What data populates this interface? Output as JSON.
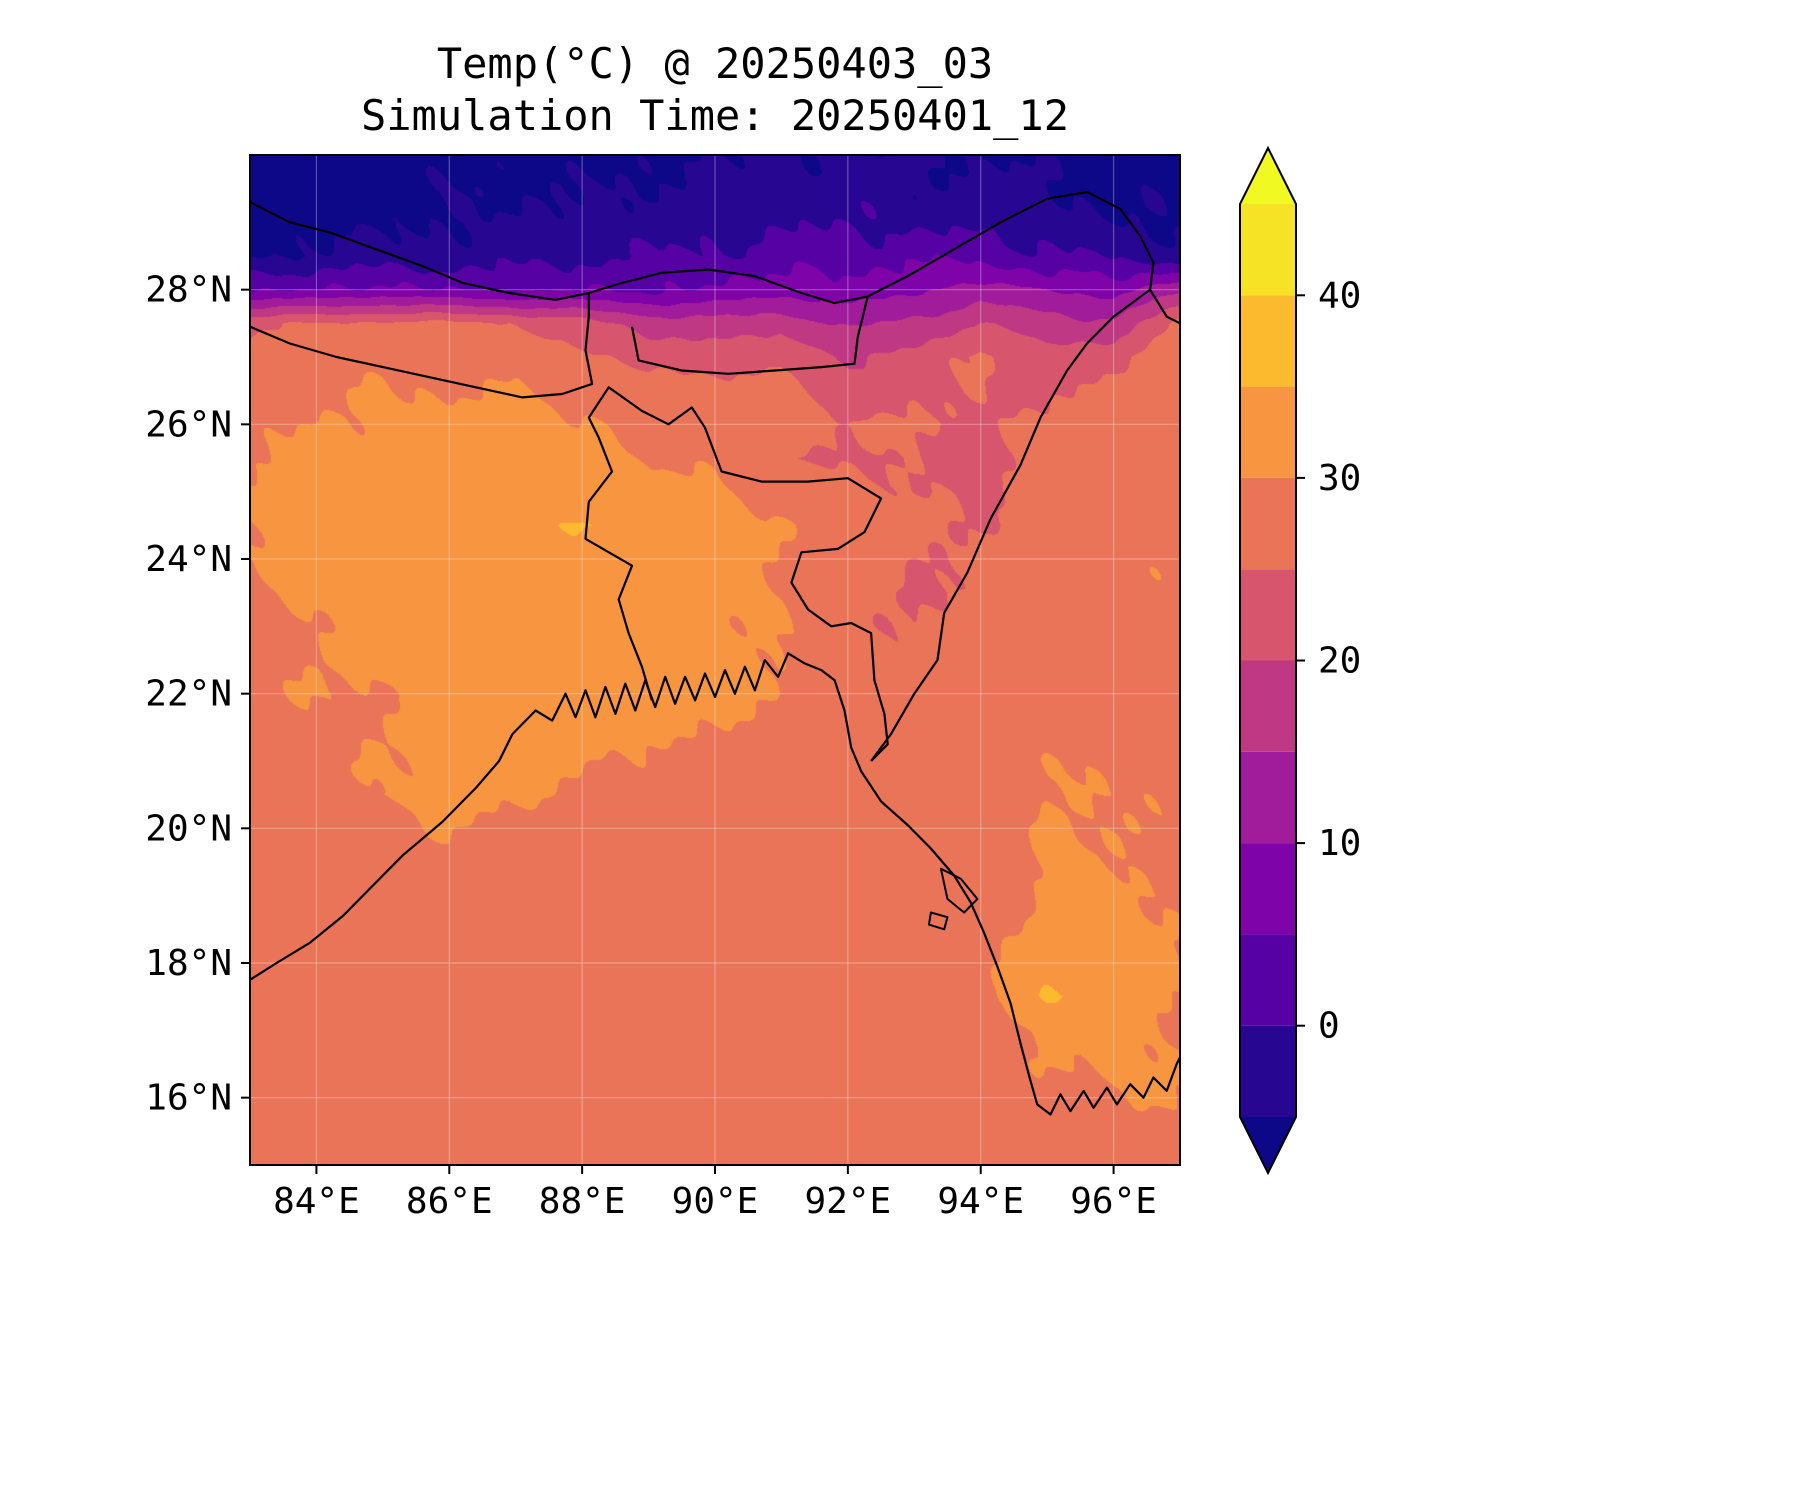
{
  "title": {
    "line1": "Temp(°C) @ 20250403_03",
    "line2": "Simulation Time: 20250401_12"
  },
  "axes": {
    "x_ticks": [
      {
        "label": "84°E",
        "lon": 84
      },
      {
        "label": "86°E",
        "lon": 86
      },
      {
        "label": "88°E",
        "lon": 88
      },
      {
        "label": "90°E",
        "lon": 90
      },
      {
        "label": "92°E",
        "lon": 92
      },
      {
        "label": "94°E",
        "lon": 94
      },
      {
        "label": "96°E",
        "lon": 96
      }
    ],
    "y_ticks": [
      {
        "label": "28°N",
        "lat": 28
      },
      {
        "label": "26°N",
        "lat": 26
      },
      {
        "label": "24°N",
        "lat": 24
      },
      {
        "label": "22°N",
        "lat": 22
      },
      {
        "label": "20°N",
        "lat": 20
      },
      {
        "label": "18°N",
        "lat": 18
      },
      {
        "label": "16°N",
        "lat": 16
      }
    ]
  },
  "chart_data": {
    "type": "heatmap",
    "title": "Temp(°C) @ 20250403_03",
    "subtitle": "Simulation Time: 20250401_12",
    "variable": "Temperature (°C)",
    "lon_range": [
      83,
      97
    ],
    "lat_range": [
      15,
      30
    ],
    "grid_on": true,
    "contour_levels": [
      -5,
      0,
      5,
      10,
      15,
      20,
      25,
      30,
      35,
      40,
      45
    ],
    "colormap": {
      "name": "plasma",
      "band_colors": [
        "#270692",
        "#5601a4",
        "#7e03a8",
        "#a01c9a",
        "#bf3884",
        "#d7556d",
        "#ea7457",
        "#f79541",
        "#fcba2e",
        "#f6e325"
      ],
      "under": "#0d0887",
      "over": "#f0f921"
    },
    "colorbar": {
      "ticks": [
        0,
        10,
        20,
        30,
        40
      ],
      "extend": "both",
      "vmin": -5,
      "vmax": 45
    },
    "grid": {
      "lons": [
        83,
        84,
        85,
        86,
        87,
        88,
        89,
        90,
        91,
        92,
        93,
        94,
        95,
        96,
        97
      ],
      "lats": [
        30,
        29.5,
        29,
        28.5,
        28,
        27.5,
        27,
        26.5,
        26,
        25.5,
        25,
        24.5,
        24,
        23.5,
        23,
        22.5,
        22,
        21.5,
        21,
        20.5,
        20,
        19.5,
        19,
        18.5,
        18,
        17.5,
        17,
        16.5,
        16,
        15.5,
        15
      ],
      "temps_c": [
        [
          -9,
          -8,
          -8,
          -7,
          -6,
          -7,
          -6,
          -5,
          -4,
          -5,
          -3,
          -6,
          -5,
          -7,
          -8
        ],
        [
          -8,
          -7,
          -7,
          -6,
          -5,
          -6,
          -4,
          -4,
          -3,
          -2,
          -4,
          -3,
          -5,
          -6,
          -7
        ],
        [
          -7,
          -6,
          -6,
          -5,
          -4,
          -4,
          -3,
          -2,
          -1,
          0,
          -2,
          -1,
          -3,
          -5,
          -6
        ],
        [
          -5,
          -4,
          -3,
          -3,
          -2,
          -1,
          0,
          1,
          2,
          3,
          4,
          3,
          1,
          -1,
          -3
        ],
        [
          4,
          5,
          6,
          5,
          4,
          5,
          4,
          6,
          8,
          7,
          9,
          12,
          10,
          8,
          14
        ],
        [
          24,
          25,
          26,
          26,
          25,
          22,
          18,
          17,
          18,
          14,
          16,
          20,
          17,
          16,
          26
        ],
        [
          27,
          28,
          29,
          29,
          28,
          26,
          23,
          23,
          24,
          19,
          22,
          26,
          22,
          23,
          30
        ],
        [
          28,
          29,
          30,
          30,
          30,
          29,
          27,
          27,
          27,
          22,
          24,
          25,
          24,
          26,
          29
        ],
        [
          29,
          30,
          31,
          31,
          31,
          30,
          29,
          28,
          29,
          25,
          26,
          24,
          26,
          28,
          29
        ],
        [
          30,
          31,
          32,
          32,
          32,
          31,
          30,
          29,
          26,
          24,
          25,
          23,
          27,
          29,
          29
        ],
        [
          30,
          32,
          33,
          33,
          33,
          32,
          31,
          31,
          28,
          26,
          25,
          24,
          28,
          29,
          29
        ],
        [
          30,
          33,
          33,
          34,
          33,
          36,
          32,
          32,
          30,
          29,
          26,
          24,
          28,
          29,
          29
        ],
        [
          30,
          32,
          33,
          33,
          33,
          32,
          32,
          31,
          30,
          29,
          25,
          26,
          28,
          29,
          29
        ],
        [
          29,
          31,
          32,
          33,
          32,
          32,
          31,
          31,
          30,
          28,
          24,
          26,
          28,
          29,
          29
        ],
        [
          29,
          30,
          31,
          32,
          32,
          31,
          31,
          31,
          30,
          26,
          25,
          27,
          28,
          29,
          29
        ],
        [
          29,
          30,
          31,
          32,
          31,
          31,
          32,
          31,
          30,
          26,
          26,
          27,
          28,
          29,
          29
        ],
        [
          28.5,
          30,
          30,
          31,
          31,
          32,
          32,
          31,
          30,
          27,
          26,
          27,
          28,
          29,
          29
        ],
        [
          28.5,
          29,
          30,
          31,
          32,
          32,
          31,
          30,
          28.5,
          27,
          26,
          27,
          29,
          29,
          29
        ],
        [
          28.5,
          28.5,
          30,
          31,
          32,
          31,
          29,
          28.5,
          28.5,
          28,
          26,
          28,
          30,
          29,
          29
        ],
        [
          28.5,
          28.5,
          30,
          31,
          31,
          29,
          28.5,
          28.5,
          28.5,
          28.5,
          27,
          26,
          30,
          30,
          29
        ],
        [
          28.5,
          28.5,
          29,
          30,
          29,
          28.5,
          28.5,
          28.5,
          28.5,
          28.5,
          28,
          25,
          31,
          30,
          29
        ],
        [
          28.5,
          28.5,
          29,
          28.5,
          28.5,
          28.5,
          28.5,
          28.5,
          28.5,
          28.5,
          28.5,
          26,
          31,
          30,
          29
        ],
        [
          28.5,
          28.5,
          28.5,
          28.5,
          28.5,
          28.5,
          28.5,
          28.5,
          28.5,
          28.5,
          28.5,
          27,
          31,
          31,
          30
        ],
        [
          28.5,
          28.5,
          28.5,
          28.5,
          28.5,
          28.5,
          28.5,
          28.5,
          28.5,
          28.5,
          28.5,
          28,
          31,
          31,
          30
        ],
        [
          28.5,
          28.5,
          28.5,
          28.5,
          28.5,
          28.5,
          28.5,
          28.5,
          28.5,
          28.5,
          28.5,
          29,
          32,
          31,
          30
        ],
        [
          28.5,
          28.5,
          28.5,
          28.5,
          28.5,
          28.5,
          28.5,
          28.5,
          28.5,
          28.5,
          28.5,
          28.5,
          36,
          32,
          30
        ],
        [
          28.5,
          28.5,
          28.5,
          28.5,
          28.5,
          28.5,
          28.5,
          28.5,
          28.5,
          28.5,
          28.5,
          28.5,
          31,
          31,
          30
        ],
        [
          28.5,
          28.5,
          28.5,
          28.5,
          28.5,
          28.5,
          28.5,
          28.5,
          28.5,
          28.5,
          28.5,
          28.5,
          30,
          31,
          30
        ],
        [
          28.5,
          28.5,
          28.5,
          28.5,
          28.5,
          28.5,
          28.5,
          28.5,
          28.5,
          28.5,
          28.5,
          28.5,
          29,
          30,
          30
        ],
        [
          28.5,
          28.5,
          28.5,
          28.5,
          28.5,
          28.5,
          28.5,
          28.5,
          28.5,
          28.5,
          28.5,
          28.5,
          28.5,
          29,
          29
        ],
        [
          28.5,
          28.5,
          28.5,
          28.5,
          28.5,
          28.5,
          28.5,
          28.5,
          28.5,
          28.5,
          28.5,
          28.5,
          28.5,
          28.5,
          28.5
        ]
      ]
    }
  },
  "map_overlays": {
    "coastline": [
      [
        83.0,
        17.75
      ],
      [
        83.4,
        18.0
      ],
      [
        83.9,
        18.3
      ],
      [
        84.4,
        18.7
      ],
      [
        84.8,
        19.1
      ],
      [
        85.3,
        19.6
      ],
      [
        85.9,
        20.1
      ],
      [
        86.4,
        20.6
      ],
      [
        86.75,
        21.0
      ],
      [
        86.95,
        21.4
      ],
      [
        87.3,
        21.75
      ],
      [
        87.55,
        21.6
      ],
      [
        87.75,
        22.0
      ],
      [
        87.9,
        21.65
      ],
      [
        88.05,
        22.05
      ],
      [
        88.2,
        21.65
      ],
      [
        88.35,
        22.1
      ],
      [
        88.5,
        21.7
      ],
      [
        88.65,
        22.15
      ],
      [
        88.8,
        21.75
      ],
      [
        88.95,
        22.2
      ],
      [
        89.1,
        21.8
      ],
      [
        89.25,
        22.25
      ],
      [
        89.4,
        21.85
      ],
      [
        89.55,
        22.25
      ],
      [
        89.7,
        21.9
      ],
      [
        89.85,
        22.3
      ],
      [
        90.0,
        21.95
      ],
      [
        90.15,
        22.35
      ],
      [
        90.3,
        22.0
      ],
      [
        90.45,
        22.4
      ],
      [
        90.6,
        22.05
      ],
      [
        90.75,
        22.5
      ],
      [
        90.95,
        22.25
      ],
      [
        91.1,
        22.6
      ],
      [
        91.35,
        22.45
      ],
      [
        91.6,
        22.35
      ],
      [
        91.8,
        22.2
      ],
      [
        91.95,
        21.75
      ],
      [
        92.05,
        21.2
      ],
      [
        92.2,
        20.85
      ],
      [
        92.5,
        20.4
      ],
      [
        92.9,
        20.05
      ],
      [
        93.25,
        19.7
      ],
      [
        93.6,
        19.3
      ],
      [
        93.85,
        18.9
      ],
      [
        94.05,
        18.45
      ],
      [
        94.25,
        17.95
      ],
      [
        94.45,
        17.4
      ],
      [
        94.6,
        16.8
      ],
      [
        94.75,
        16.25
      ],
      [
        94.85,
        15.9
      ],
      [
        95.05,
        15.75
      ],
      [
        95.2,
        16.05
      ],
      [
        95.35,
        15.8
      ],
      [
        95.55,
        16.1
      ],
      [
        95.7,
        15.85
      ],
      [
        95.9,
        16.15
      ],
      [
        96.05,
        15.9
      ],
      [
        96.25,
        16.2
      ],
      [
        96.45,
        16.0
      ],
      [
        96.6,
        16.3
      ],
      [
        96.8,
        16.1
      ],
      [
        96.95,
        16.5
      ],
      [
        97.0,
        16.6
      ]
    ],
    "borders": [
      [
        [
          83.0,
          29.3
        ],
        [
          83.6,
          29.0
        ],
        [
          84.2,
          28.85
        ],
        [
          84.9,
          28.6
        ],
        [
          85.6,
          28.35
        ],
        [
          86.2,
          28.1
        ],
        [
          86.9,
          27.95
        ],
        [
          87.6,
          27.85
        ],
        [
          88.1,
          27.95
        ],
        [
          88.6,
          28.1
        ],
        [
          89.2,
          28.25
        ],
        [
          89.9,
          28.3
        ],
        [
          90.6,
          28.2
        ],
        [
          91.3,
          27.95
        ],
        [
          91.8,
          27.8
        ],
        [
          92.3,
          27.9
        ],
        [
          92.9,
          28.2
        ],
        [
          93.6,
          28.6
        ],
        [
          94.3,
          29.0
        ],
        [
          95.0,
          29.35
        ],
        [
          95.6,
          29.45
        ],
        [
          96.1,
          29.2
        ],
        [
          96.4,
          28.8
        ],
        [
          96.6,
          28.4
        ],
        [
          96.55,
          28.0
        ],
        [
          96.8,
          27.6
        ],
        [
          97.0,
          27.5
        ]
      ],
      [
        [
          83.0,
          27.45
        ],
        [
          83.6,
          27.2
        ],
        [
          84.3,
          27.0
        ],
        [
          85.0,
          26.85
        ],
        [
          85.7,
          26.7
        ],
        [
          86.4,
          26.55
        ],
        [
          87.1,
          26.4
        ],
        [
          87.7,
          26.45
        ],
        [
          88.15,
          26.6
        ],
        [
          88.05,
          27.1
        ],
        [
          88.1,
          27.6
        ],
        [
          88.1,
          27.95
        ]
      ],
      [
        [
          88.75,
          27.45
        ],
        [
          88.85,
          26.95
        ],
        [
          89.5,
          26.8
        ],
        [
          90.2,
          26.75
        ],
        [
          90.9,
          26.8
        ],
        [
          91.6,
          26.85
        ],
        [
          92.1,
          26.9
        ],
        [
          92.15,
          27.3
        ],
        [
          92.3,
          27.9
        ]
      ],
      [
        [
          89.05,
          21.9
        ],
        [
          88.9,
          22.4
        ],
        [
          88.7,
          22.9
        ],
        [
          88.55,
          23.4
        ],
        [
          88.75,
          23.9
        ],
        [
          88.05,
          24.3
        ],
        [
          88.1,
          24.85
        ],
        [
          88.45,
          25.3
        ],
        [
          88.25,
          25.8
        ],
        [
          88.1,
          26.1
        ],
        [
          88.4,
          26.55
        ],
        [
          88.9,
          26.2
        ],
        [
          89.3,
          26.0
        ],
        [
          89.65,
          26.25
        ],
        [
          89.85,
          25.95
        ],
        [
          90.1,
          25.3
        ],
        [
          90.7,
          25.15
        ],
        [
          91.4,
          25.15
        ],
        [
          92.0,
          25.2
        ],
        [
          92.5,
          24.9
        ],
        [
          92.25,
          24.4
        ],
        [
          91.85,
          24.15
        ],
        [
          91.3,
          24.1
        ],
        [
          91.15,
          23.65
        ],
        [
          91.4,
          23.25
        ],
        [
          91.75,
          23.0
        ],
        [
          92.05,
          23.05
        ],
        [
          92.35,
          22.9
        ],
        [
          92.4,
          22.2
        ],
        [
          92.55,
          21.7
        ],
        [
          92.6,
          21.25
        ],
        [
          92.35,
          21.0
        ]
      ],
      [
        [
          96.55,
          28.0
        ],
        [
          96.0,
          27.6
        ],
        [
          95.6,
          27.2
        ],
        [
          95.3,
          26.8
        ],
        [
          94.9,
          26.1
        ],
        [
          94.6,
          25.4
        ],
        [
          94.15,
          24.6
        ],
        [
          93.8,
          23.8
        ],
        [
          93.45,
          23.2
        ],
        [
          93.35,
          22.5
        ],
        [
          93.0,
          22.0
        ],
        [
          92.65,
          21.4
        ],
        [
          92.35,
          21.0
        ]
      ]
    ],
    "islands": [
      [
        [
          93.4,
          19.4
        ],
        [
          93.7,
          19.25
        ],
        [
          93.95,
          18.95
        ],
        [
          93.75,
          18.75
        ],
        [
          93.5,
          18.95
        ],
        [
          93.4,
          19.4
        ]
      ],
      [
        [
          93.25,
          18.75
        ],
        [
          93.5,
          18.68
        ],
        [
          93.45,
          18.5
        ],
        [
          93.22,
          18.57
        ],
        [
          93.25,
          18.75
        ]
      ]
    ]
  }
}
